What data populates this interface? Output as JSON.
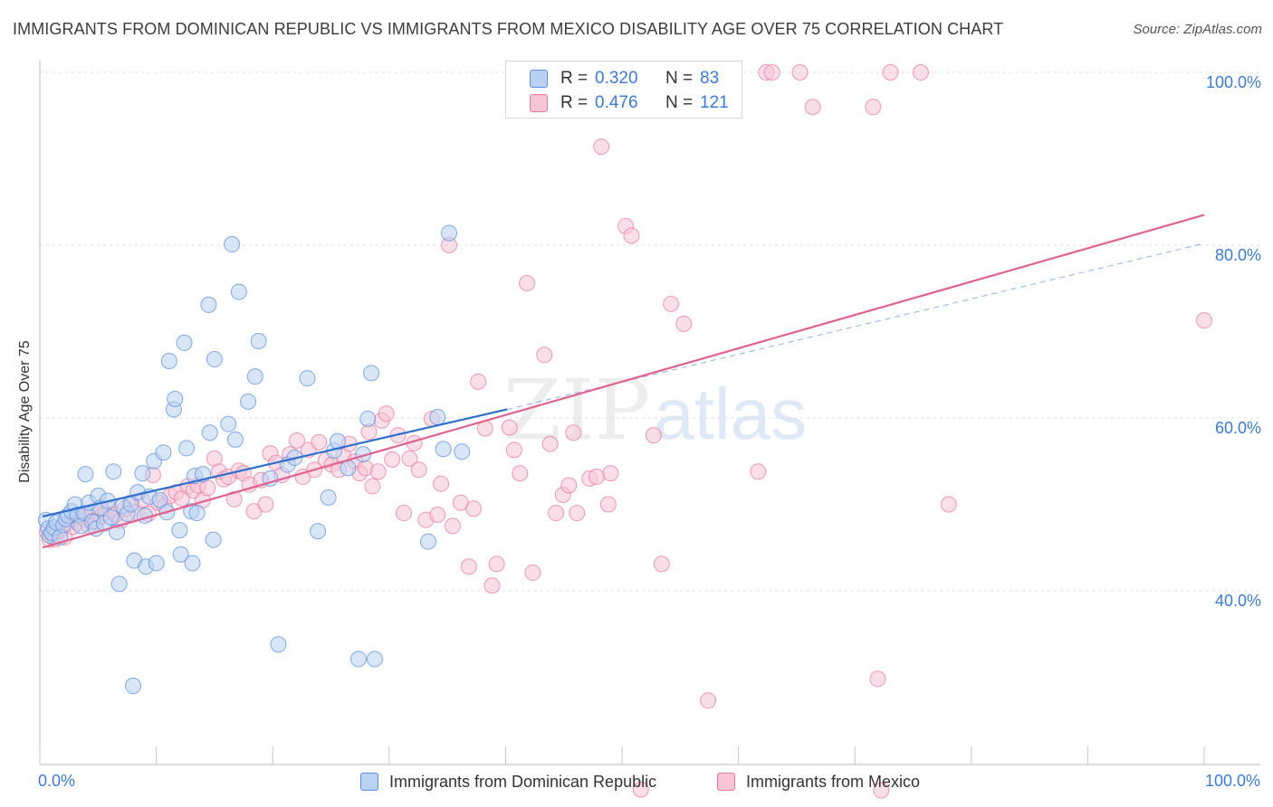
{
  "title": "IMMIGRANTS FROM DOMINICAN REPUBLIC VS IMMIGRANTS FROM MEXICO DISABILITY AGE OVER 75 CORRELATION CHART",
  "source": "Source: ZipAtlas.com",
  "watermark": {
    "part1": "ZIP",
    "part2": "atlas"
  },
  "colors": {
    "blue": "#5b8fdc",
    "blue_fill": "#b9d1f3",
    "blue_line": "#2f6fce",
    "pink": "#e8799d",
    "pink_fill": "#f7c5d5",
    "pink_line": "#e0628f",
    "tick_text": "#3d7bd6",
    "grid": "#dcdcdc"
  },
  "legend": {
    "r_label": "R =",
    "n_label": "N =",
    "series": [
      {
        "name": "Immigrants from Dominican Republic",
        "r": "0.320",
        "n": "83"
      },
      {
        "name": "Immigrants from Mexico",
        "r": "0.476",
        "n": "121"
      }
    ]
  },
  "chart_data": {
    "type": "scatter",
    "title": "IMMIGRANTS FROM DOMINICAN REPUBLIC VS IMMIGRANTS FROM MEXICO DISABILITY AGE OVER 75 CORRELATION CHART",
    "xlabel": "",
    "ylabel": "Disability Age Over 75",
    "xlim": [
      0,
      100
    ],
    "ylim": [
      17,
      100
    ],
    "x_tick_labels": [
      "0.0%",
      "100.0%"
    ],
    "y_ticks": [
      40,
      60,
      80,
      100
    ],
    "y_tick_labels": [
      "40.0%",
      "60.0%",
      "80.0%",
      "100.0%"
    ],
    "grid": "horizontal-dashed",
    "legend_position": "top-center",
    "series": [
      {
        "name": "Immigrants from Dominican Republic",
        "r": 0.32,
        "n": 83,
        "trend": {
          "x": [
            0,
            40
          ],
          "y": [
            48.6,
            61.0
          ],
          "dashed_extension": {
            "x": [
              40,
              100
            ],
            "y": [
              61.0,
              80.2
            ]
          }
        },
        "points": [
          [
            0.3,
            48.2
          ],
          [
            0.5,
            47.2
          ],
          [
            0.6,
            46.4
          ],
          [
            0.8,
            46.7
          ],
          [
            1.0,
            47.3
          ],
          [
            1.2,
            47.9
          ],
          [
            1.5,
            46.2
          ],
          [
            1.8,
            47.6
          ],
          [
            2.0,
            48.3
          ],
          [
            2.2,
            48.7
          ],
          [
            2.5,
            49.2
          ],
          [
            2.8,
            50.0
          ],
          [
            3.0,
            48.8
          ],
          [
            3.3,
            47.5
          ],
          [
            3.6,
            49.0
          ],
          [
            3.7,
            53.5
          ],
          [
            4.0,
            50.2
          ],
          [
            4.3,
            48.0
          ],
          [
            4.6,
            47.2
          ],
          [
            4.8,
            51.0
          ],
          [
            5.0,
            49.6
          ],
          [
            5.3,
            47.8
          ],
          [
            5.6,
            50.4
          ],
          [
            5.9,
            48.5
          ],
          [
            6.1,
            53.8
          ],
          [
            6.4,
            46.8
          ],
          [
            6.6,
            40.8
          ],
          [
            6.9,
            49.8
          ],
          [
            7.3,
            48.9
          ],
          [
            7.6,
            50.0
          ],
          [
            7.8,
            29.0
          ],
          [
            7.9,
            43.5
          ],
          [
            8.2,
            51.4
          ],
          [
            8.6,
            53.6
          ],
          [
            8.8,
            48.7
          ],
          [
            8.9,
            42.8
          ],
          [
            9.2,
            50.9
          ],
          [
            9.6,
            55.0
          ],
          [
            9.8,
            43.2
          ],
          [
            10.1,
            50.5
          ],
          [
            10.4,
            56.0
          ],
          [
            10.7,
            49.1
          ],
          [
            10.9,
            66.6
          ],
          [
            11.3,
            61.0
          ],
          [
            11.4,
            62.2
          ],
          [
            11.8,
            47.0
          ],
          [
            11.9,
            44.2
          ],
          [
            12.2,
            68.7
          ],
          [
            12.4,
            56.5
          ],
          [
            12.8,
            49.2
          ],
          [
            12.9,
            43.2
          ],
          [
            13.1,
            53.3
          ],
          [
            13.3,
            49.0
          ],
          [
            13.8,
            53.5
          ],
          [
            14.3,
            73.1
          ],
          [
            14.4,
            58.3
          ],
          [
            14.7,
            45.9
          ],
          [
            14.8,
            66.8
          ],
          [
            16.0,
            59.3
          ],
          [
            16.3,
            80.1
          ],
          [
            16.6,
            57.5
          ],
          [
            16.9,
            74.6
          ],
          [
            17.7,
            61.9
          ],
          [
            18.3,
            64.8
          ],
          [
            18.6,
            68.9
          ],
          [
            19.6,
            53.0
          ],
          [
            20.3,
            33.8
          ],
          [
            21.1,
            54.6
          ],
          [
            21.7,
            55.4
          ],
          [
            22.8,
            64.6
          ],
          [
            23.7,
            46.9
          ],
          [
            24.6,
            50.8
          ],
          [
            25.1,
            56.2
          ],
          [
            25.4,
            57.3
          ],
          [
            26.3,
            54.2
          ],
          [
            27.2,
            32.1
          ],
          [
            27.6,
            55.8
          ],
          [
            28.0,
            59.9
          ],
          [
            28.3,
            65.2
          ],
          [
            28.6,
            32.1
          ],
          [
            33.2,
            45.7
          ],
          [
            34.5,
            56.4
          ],
          [
            35.0,
            81.4
          ],
          [
            36.1,
            56.1
          ],
          [
            34.0,
            60.1
          ]
        ]
      },
      {
        "name": "Immigrants from Mexico",
        "r": 0.476,
        "n": 121,
        "trend": {
          "x": [
            0,
            100
          ],
          "y": [
            45.0,
            83.5
          ]
        },
        "points": [
          [
            0.4,
            46.8
          ],
          [
            0.6,
            45.9
          ],
          [
            0.9,
            46.3
          ],
          [
            1.1,
            46.0
          ],
          [
            1.3,
            46.9
          ],
          [
            1.6,
            47.1
          ],
          [
            1.9,
            46.2
          ],
          [
            2.2,
            47.8
          ],
          [
            2.6,
            47.4
          ],
          [
            3.0,
            47.9
          ],
          [
            3.4,
            48.5
          ],
          [
            3.7,
            48.2
          ],
          [
            4.0,
            47.5
          ],
          [
            4.3,
            49.2
          ],
          [
            4.6,
            48.0
          ],
          [
            5.0,
            48.6
          ],
          [
            5.4,
            49.0
          ],
          [
            5.8,
            49.4
          ],
          [
            6.3,
            48.8
          ],
          [
            6.7,
            48.1
          ],
          [
            7.1,
            49.5
          ],
          [
            7.6,
            50.2
          ],
          [
            8.1,
            49.1
          ],
          [
            8.6,
            50.5
          ],
          [
            9.1,
            48.9
          ],
          [
            9.5,
            53.4
          ],
          [
            10.0,
            50.2
          ],
          [
            10.5,
            49.8
          ],
          [
            11.0,
            51.0
          ],
          [
            11.5,
            51.4
          ],
          [
            12.0,
            50.7
          ],
          [
            12.5,
            52.1
          ],
          [
            13.0,
            51.6
          ],
          [
            13.4,
            52.2
          ],
          [
            13.8,
            50.5
          ],
          [
            14.2,
            51.9
          ],
          [
            14.8,
            55.3
          ],
          [
            15.2,
            53.8
          ],
          [
            15.6,
            52.9
          ],
          [
            16.0,
            53.2
          ],
          [
            16.5,
            50.6
          ],
          [
            16.9,
            53.9
          ],
          [
            17.3,
            53.6
          ],
          [
            17.8,
            52.3
          ],
          [
            18.2,
            49.2
          ],
          [
            18.8,
            52.8
          ],
          [
            19.2,
            50.0
          ],
          [
            19.6,
            55.9
          ],
          [
            20.1,
            54.8
          ],
          [
            20.6,
            53.4
          ],
          [
            21.3,
            55.8
          ],
          [
            21.9,
            57.4
          ],
          [
            22.4,
            53.2
          ],
          [
            22.9,
            56.3
          ],
          [
            23.4,
            54.0
          ],
          [
            23.8,
            57.2
          ],
          [
            24.4,
            55.1
          ],
          [
            24.9,
            54.6
          ],
          [
            25.5,
            54.0
          ],
          [
            25.9,
            55.6
          ],
          [
            26.4,
            57.0
          ],
          [
            26.9,
            55.0
          ],
          [
            27.3,
            53.6
          ],
          [
            27.8,
            54.2
          ],
          [
            28.1,
            58.4
          ],
          [
            28.4,
            52.1
          ],
          [
            28.9,
            53.8
          ],
          [
            29.2,
            59.7
          ],
          [
            29.6,
            60.5
          ],
          [
            30.1,
            55.2
          ],
          [
            30.6,
            58.0
          ],
          [
            31.1,
            49.0
          ],
          [
            31.6,
            55.3
          ],
          [
            32.0,
            57.1
          ],
          [
            32.4,
            54.0
          ],
          [
            33.0,
            48.2
          ],
          [
            33.5,
            59.9
          ],
          [
            34.0,
            48.8
          ],
          [
            34.3,
            52.4
          ],
          [
            35.0,
            80.0
          ],
          [
            35.3,
            47.5
          ],
          [
            36.0,
            50.2
          ],
          [
            36.7,
            42.8
          ],
          [
            37.1,
            49.5
          ],
          [
            37.5,
            64.2
          ],
          [
            38.1,
            58.8
          ],
          [
            38.7,
            40.6
          ],
          [
            39.1,
            43.1
          ],
          [
            40.2,
            58.9
          ],
          [
            40.6,
            56.3
          ],
          [
            41.1,
            53.6
          ],
          [
            41.7,
            75.6
          ],
          [
            42.2,
            42.1
          ],
          [
            43.2,
            67.3
          ],
          [
            43.7,
            57.0
          ],
          [
            44.2,
            49.0
          ],
          [
            44.8,
            51.1
          ],
          [
            45.3,
            52.2
          ],
          [
            45.7,
            58.3
          ],
          [
            46.0,
            49.0
          ],
          [
            47.1,
            53.0
          ],
          [
            47.7,
            53.2
          ],
          [
            48.1,
            91.4
          ],
          [
            48.7,
            50.0
          ],
          [
            48.9,
            53.6
          ],
          [
            50.2,
            82.2
          ],
          [
            50.7,
            81.1
          ],
          [
            51.5,
            17.0
          ],
          [
            53.3,
            43.1
          ],
          [
            54.1,
            73.2
          ],
          [
            55.2,
            70.9
          ],
          [
            57.3,
            27.3
          ],
          [
            61.6,
            53.8
          ],
          [
            62.3,
            100.0
          ],
          [
            62.8,
            100.0
          ],
          [
            65.2,
            100.0
          ],
          [
            66.3,
            96.0
          ],
          [
            73.0,
            100.0
          ],
          [
            75.6,
            100.0
          ],
          [
            78.0,
            50.0
          ],
          [
            71.5,
            96.0
          ],
          [
            71.9,
            29.8
          ],
          [
            72.2,
            16.9
          ],
          [
            100.0,
            71.3
          ],
          [
            52.6,
            58.0
          ]
        ]
      }
    ]
  }
}
